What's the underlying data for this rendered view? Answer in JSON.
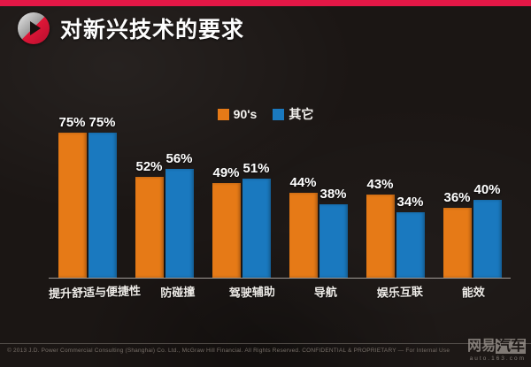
{
  "header": {
    "title": "对新兴技术的要求"
  },
  "chart_data": {
    "type": "bar",
    "title": "对新兴技术的要求",
    "categories": [
      "提升舒适与便捷性",
      "防碰撞",
      "驾驶辅助",
      "导航",
      "娱乐互联",
      "能效"
    ],
    "series": [
      {
        "name": "90's",
        "color": "#e67a17",
        "values": [
          75,
          52,
          49,
          44,
          43,
          36
        ]
      },
      {
        "name": "其它",
        "color": "#1a79bf",
        "values": [
          75,
          56,
          51,
          38,
          34,
          40
        ]
      }
    ],
    "value_suffix": "%",
    "xlabel": "",
    "ylabel": "",
    "ylim": [
      0,
      80
    ],
    "grid": false,
    "legend_position": "top-center",
    "value_labels": "above-bars"
  },
  "colors": {
    "accent_red": "#e31746",
    "background": "#1b1614",
    "bar_90s": "#e67a17",
    "bar_other": "#1a79bf"
  },
  "footer": {
    "copyright": "© 2013 J.D. Power Commercial Consulting (Shanghai) Co. Ltd., McGraw Hill Financial. All Rights Reserved. CONFIDENTIAL & PROPRIETARY — For Internal Use"
  },
  "watermark": {
    "brand_prefix": "网易",
    "brand_suffix": "汽车",
    "url": "auto.163.com"
  }
}
